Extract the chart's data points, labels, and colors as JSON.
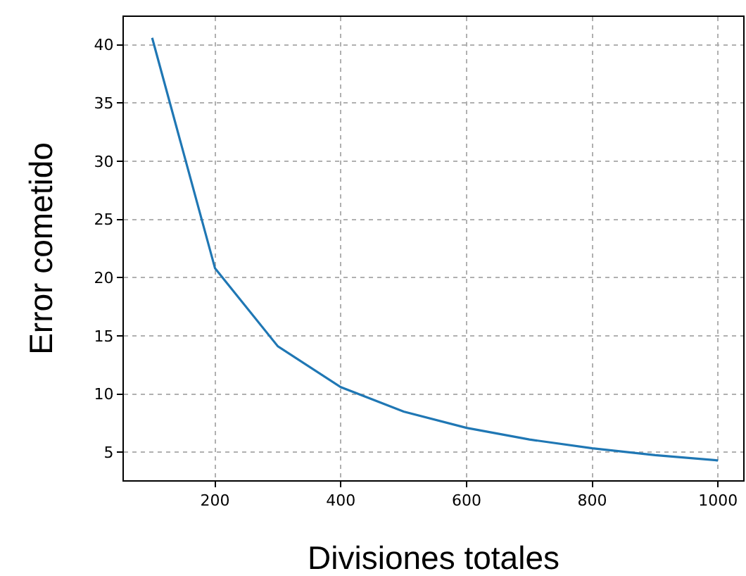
{
  "chart_data": {
    "type": "line",
    "xlabel": "Divisiones totales",
    "ylabel": "Error cometido",
    "x": [
      100,
      200,
      300,
      400,
      500,
      600,
      700,
      800,
      900,
      1000
    ],
    "series": [
      {
        "color": "#1f77b4",
        "values": [
          40.6,
          20.8,
          14.1,
          10.6,
          8.5,
          7.1,
          6.1,
          5.35,
          4.75,
          4.3
        ]
      }
    ],
    "xlim": [
      55,
      1040
    ],
    "xticks": [
      200,
      400,
      600,
      800,
      1000
    ],
    "ylim": [
      2.6,
      42.4
    ],
    "yticks": [
      5,
      10,
      15,
      20,
      25,
      30,
      35,
      40
    ],
    "grid": true,
    "line_style": "solid",
    "marker": "none"
  }
}
